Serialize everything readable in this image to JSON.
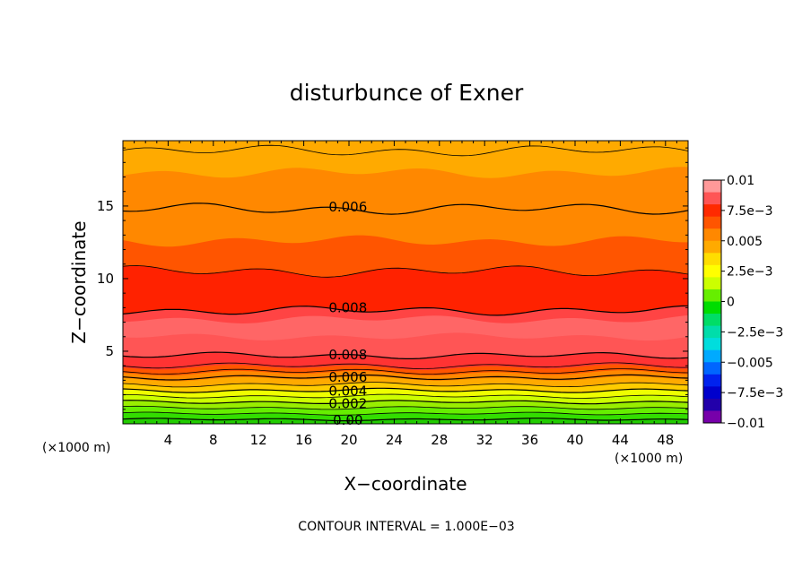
{
  "chart_data": {
    "type": "heatmap",
    "title": "disturbunce of Exner",
    "xlabel": "X−coordinate",
    "ylabel": "Z−coordinate",
    "x_unit_left": "(×1000 m)",
    "x_unit_right": "(×1000 m)",
    "xlim": [
      0,
      50
    ],
    "ylim": [
      0,
      19.5
    ],
    "x_ticks": [
      4,
      8,
      12,
      16,
      20,
      24,
      28,
      32,
      36,
      40,
      44,
      48
    ],
    "y_ticks": [
      5,
      10,
      15
    ],
    "grid": false,
    "legend_position": "right",
    "bands": [
      {
        "z_top": 0.3,
        "color": "#22cc00"
      },
      {
        "z_top": 0.7,
        "color": "#33dd00"
      },
      {
        "z_top": 1.1,
        "color": "#66ee00"
      },
      {
        "z_top": 1.5,
        "color": "#99ee00"
      },
      {
        "z_top": 1.9,
        "color": "#ccff00"
      },
      {
        "z_top": 2.3,
        "color": "#eeff00"
      },
      {
        "z_top": 2.7,
        "color": "#ffcc00"
      },
      {
        "z_top": 3.1,
        "color": "#ffaa00"
      },
      {
        "z_top": 3.5,
        "color": "#ff8800"
      },
      {
        "z_top": 3.9,
        "color": "#ff5500"
      },
      {
        "z_top": 4.7,
        "color": "#ff3333"
      },
      {
        "z_top": 6.0,
        "color": "#ff5555"
      },
      {
        "z_top": 7.2,
        "color": "#ff6666"
      },
      {
        "z_top": 7.8,
        "color": "#ff4444"
      },
      {
        "z_top": 10.5,
        "color": "#ff2200"
      },
      {
        "z_top": 12.6,
        "color": "#ff5500"
      },
      {
        "z_top": 17.3,
        "color": "#ff8800"
      },
      {
        "z_top": 19.5,
        "color": "#ffaa00"
      }
    ],
    "contours": [
      {
        "z": 0.3,
        "label": "0.00",
        "label_x": 18
      },
      {
        "z": 0.7
      },
      {
        "z": 1.1
      },
      {
        "z": 1.5,
        "label": "0.002",
        "label_x": 18
      },
      {
        "z": 1.9
      },
      {
        "z": 2.3,
        "label": "0.004",
        "label_x": 18
      },
      {
        "z": 2.7
      },
      {
        "z": 3.2,
        "label": "0.006",
        "label_x": 18
      },
      {
        "z": 3.6
      },
      {
        "z": 4.0
      },
      {
        "z": 4.7,
        "label": "0.008",
        "label_x": 18
      },
      {
        "z": 7.8,
        "label": "0.008",
        "label_x": 18
      },
      {
        "z": 10.5
      },
      {
        "z": 14.8,
        "label": "0.006",
        "label_x": 18
      },
      {
        "z": 18.8
      }
    ],
    "colorbar": {
      "colors": [
        "#ff9999",
        "#ff5555",
        "#ff2a00",
        "#ff5500",
        "#ff8800",
        "#ffaa00",
        "#ffdd00",
        "#ffff00",
        "#ccff00",
        "#66ee00",
        "#00dd00",
        "#00dd66",
        "#00ddaa",
        "#00dddd",
        "#00aaff",
        "#0066ff",
        "#0022ee",
        "#0000cc",
        "#2200aa",
        "#7700aa"
      ],
      "ticks": [
        "0.01",
        "7.5e−3",
        "0.005",
        "2.5e−3",
        "0",
        "−2.5e−3",
        "−0.005",
        "−7.5e−3",
        "−0.01"
      ]
    },
    "footnote": "CONTOUR INTERVAL = 1.000E−03"
  }
}
